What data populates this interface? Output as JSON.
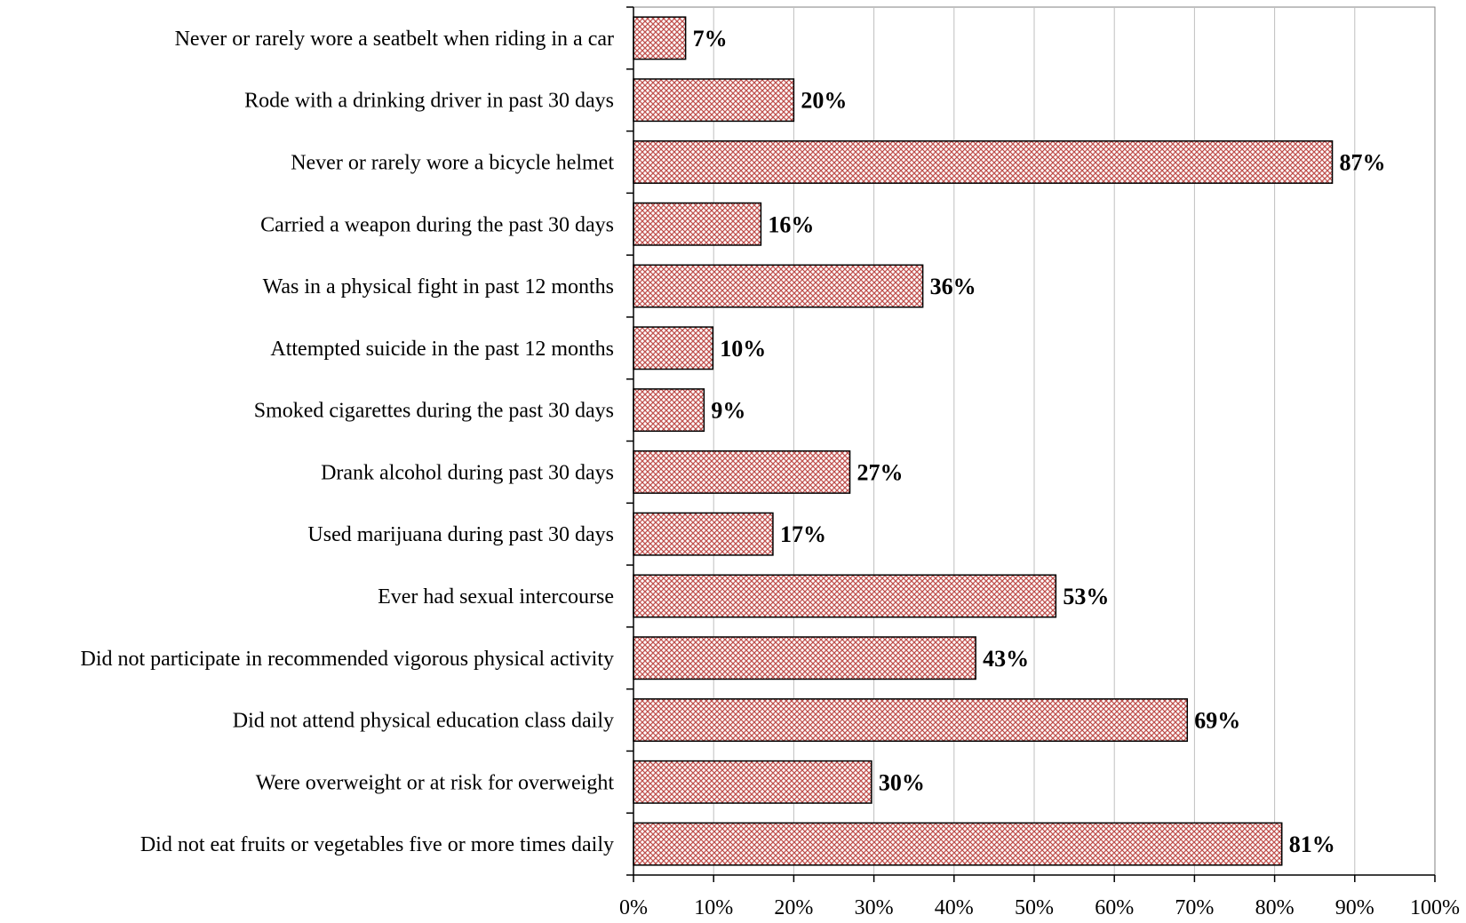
{
  "chart_data": {
    "type": "bar",
    "orientation": "horizontal",
    "categories": [
      "Never or rarely wore a seatbelt when riding in a car",
      "Rode with a drinking driver in past 30 days",
      "Never or rarely wore a bicycle helmet",
      "Carried a weapon during the past 30 days",
      "Was in a physical fight in past 12 months",
      "Attempted suicide in the past 12 months",
      "Smoked cigarettes during the past 30 days",
      "Drank alcohol during past 30 days",
      "Used marijuana during past 30 days",
      "Ever had sexual intercourse",
      "Did not participate in recommended vigorous physical activity",
      "Did not attend physical education class daily",
      "Were overweight or at risk for overweight",
      "Did not eat fruits or vegetables five or more times daily"
    ],
    "values": [
      6.5,
      20,
      87.2,
      15.9,
      36.1,
      9.9,
      8.8,
      27,
      17.4,
      52.7,
      42.7,
      69.1,
      29.7,
      80.9
    ],
    "data_labels": [
      "7%",
      "20%",
      "87%",
      "16%",
      "36%",
      "10%",
      "9%",
      "27%",
      "17%",
      "53%",
      "43%",
      "69%",
      "30%",
      "81%"
    ],
    "x_ticks": [
      "0%",
      "10%",
      "20%",
      "30%",
      "40%",
      "50%",
      "60%",
      "70%",
      "80%",
      "90%",
      "100%"
    ],
    "xlim": [
      0,
      100
    ],
    "grid": true,
    "legend": "none",
    "colors": {
      "bar_pattern": "#c0504d",
      "bar_fill": "#ffffff",
      "bar_stroke": "#000000",
      "grid": "#bfbfbf",
      "axis": "#000000"
    }
  }
}
